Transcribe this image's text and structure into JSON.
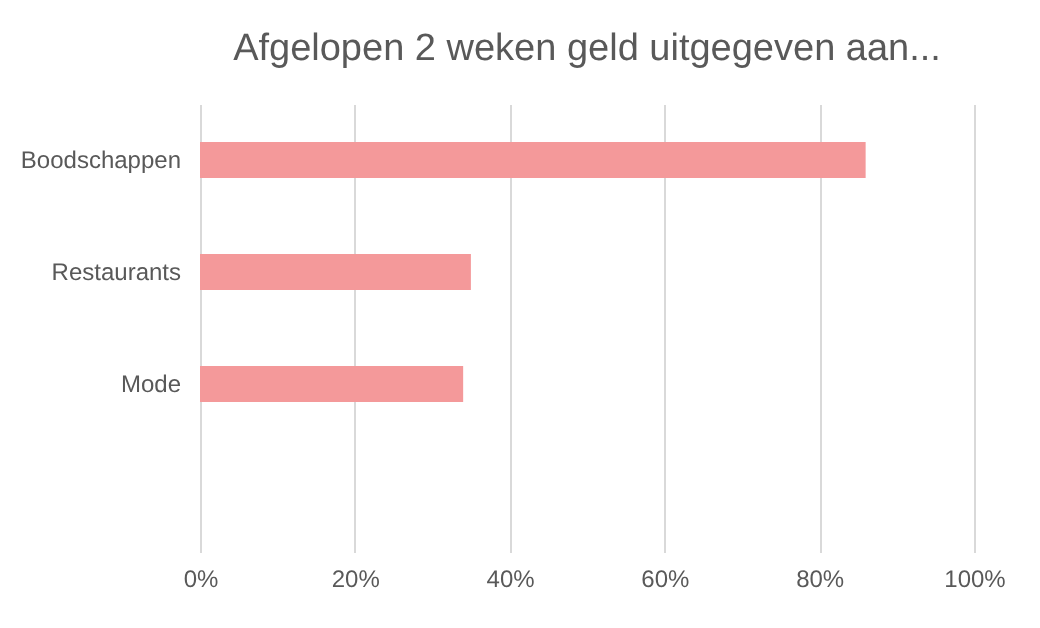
{
  "chart_data": {
    "type": "bar",
    "orientation": "horizontal",
    "title": "Afgelopen 2 weken geld uitgegeven aan...",
    "categories": [
      "Boodschappen",
      "Restaurants",
      "Mode",
      null
    ],
    "values": [
      86,
      35,
      34,
      null
    ],
    "color": "#f4999a",
    "xlim": [
      0,
      100
    ],
    "xticks": [
      {
        "value": 0,
        "label": "0%"
      },
      {
        "value": 20,
        "label": "20%"
      },
      {
        "value": 40,
        "label": "40%"
      },
      {
        "value": 60,
        "label": "60%"
      },
      {
        "value": 80,
        "label": "80%"
      },
      {
        "value": 100,
        "label": "100%"
      }
    ],
    "grid": "x"
  }
}
